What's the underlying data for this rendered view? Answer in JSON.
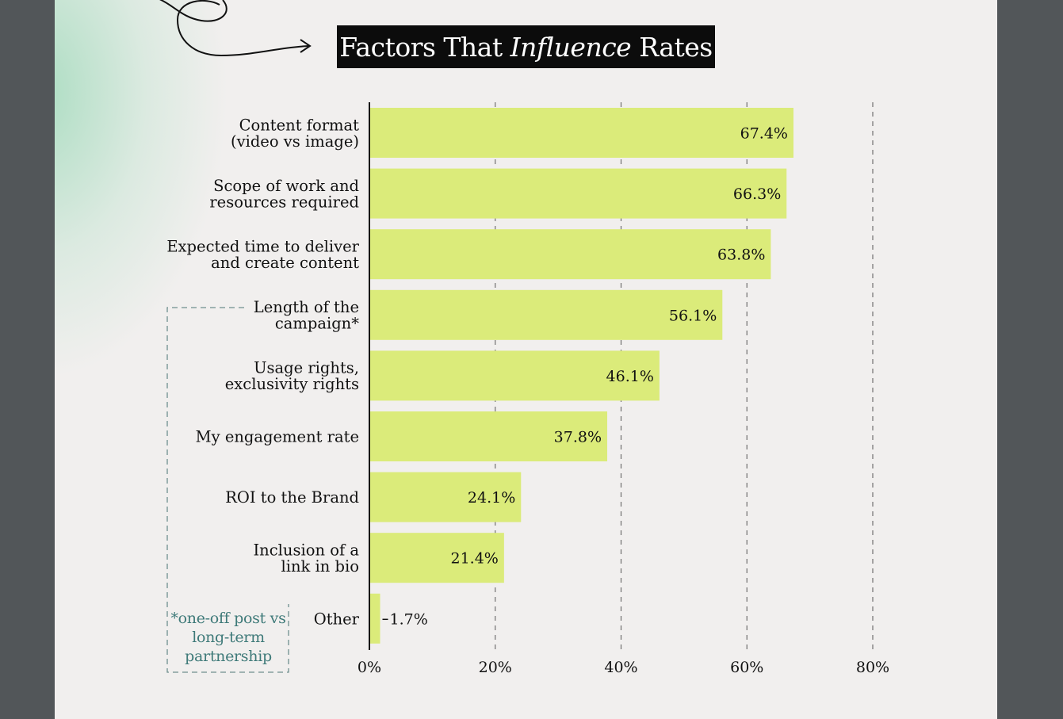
{
  "title": {
    "prefix": "Factors That ",
    "emphasis": "Influence",
    "suffix": " Rates"
  },
  "footnote": "*one-off post vs long-term partnership",
  "colors": {
    "bar": "#dbeb7a",
    "title_bg": "#0c0c0c",
    "page": "#f1efee",
    "gutter": "#525659",
    "footnote": "#3f7a79",
    "glow": "#9dd9b8"
  },
  "chart_data": {
    "type": "bar",
    "orientation": "horizontal",
    "title": "Factors That Influence Rates",
    "categories": [
      [
        "Content format",
        "(video vs image)"
      ],
      [
        "Scope of work and",
        "resources required"
      ],
      [
        "Expected time to deliver",
        "and create content"
      ],
      [
        "Length of the",
        "campaign*"
      ],
      [
        "Usage rights,",
        "exclusivity rights"
      ],
      [
        "My engagement rate"
      ],
      [
        "ROI to the Brand"
      ],
      [
        "Inclusion of a",
        "link in bio"
      ],
      [
        "Other"
      ]
    ],
    "values": [
      67.4,
      66.3,
      63.8,
      56.1,
      46.1,
      37.8,
      24.1,
      21.4,
      1.7
    ],
    "value_labels": [
      "67.4%",
      "66.3%",
      "63.8%",
      "56.1%",
      "46.1%",
      "37.8%",
      "24.1%",
      "21.4%",
      "1.7%"
    ],
    "xlim": [
      0,
      80
    ],
    "xticks": [
      0,
      20,
      40,
      60,
      80
    ],
    "xtick_labels": [
      "0%",
      "20%",
      "40%",
      "60%",
      "80%"
    ],
    "grid": "vertical dashed",
    "xlabel": "",
    "ylabel": ""
  }
}
